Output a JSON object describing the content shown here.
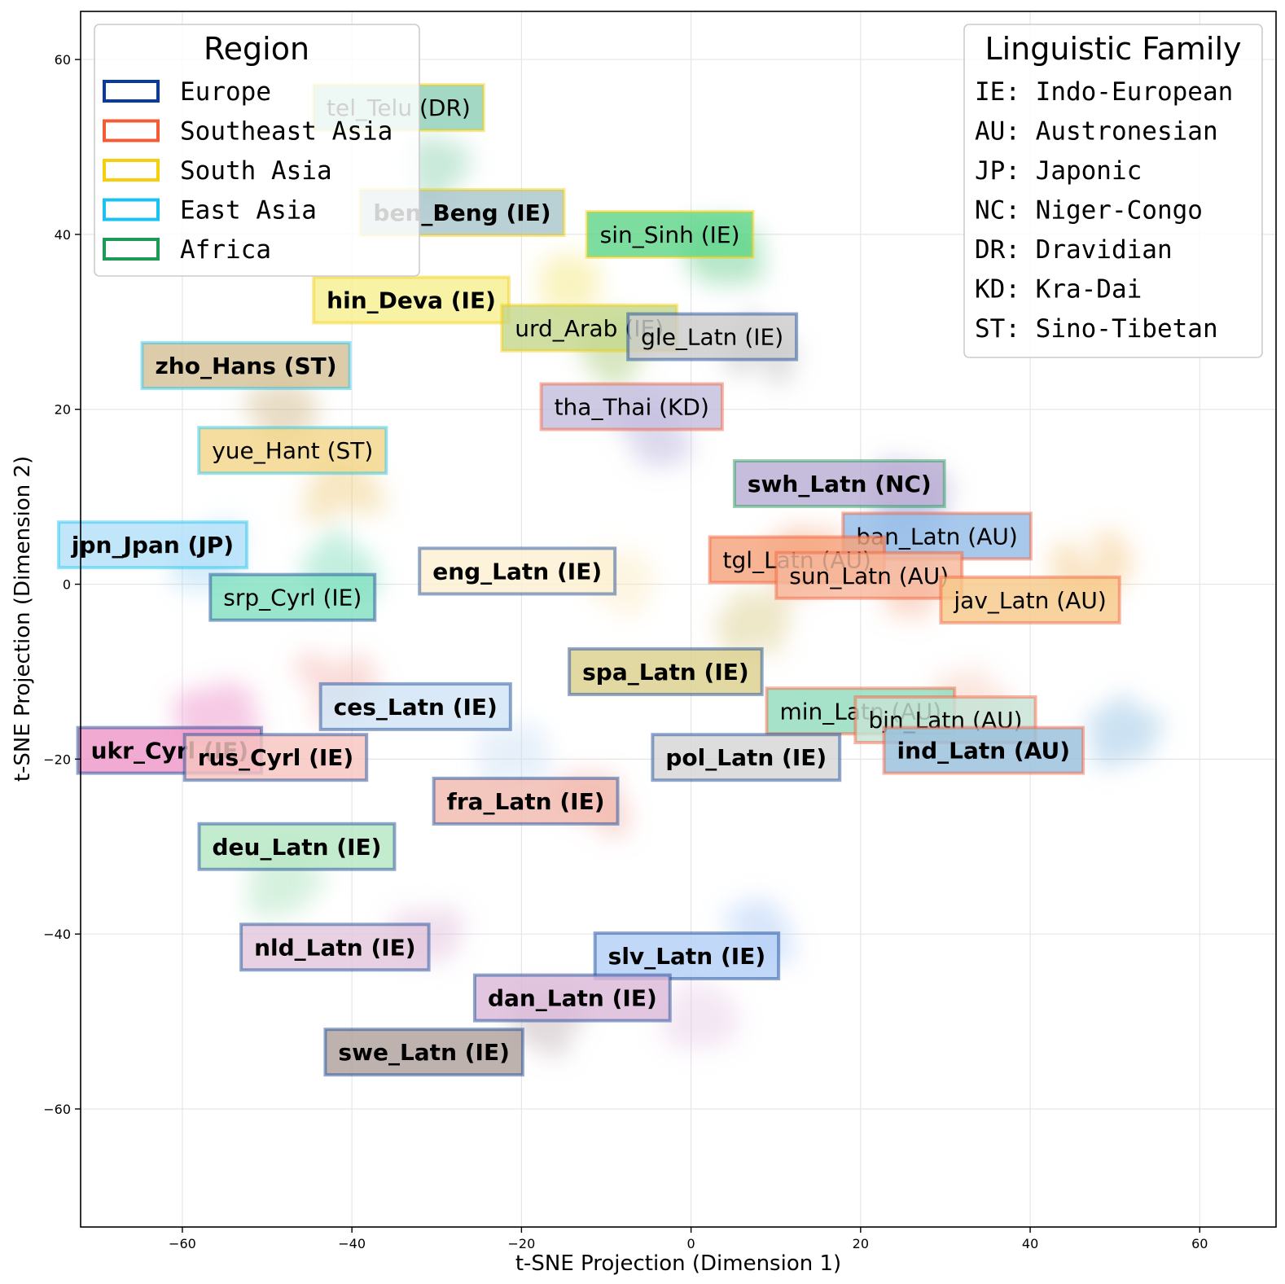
{
  "chart_data": {
    "type": "scatter",
    "xlabel": "t-SNE Projection (Dimension 1)",
    "ylabel": "t-SNE Projection (Dimension 2)",
    "xlim": [
      -72,
      69
    ],
    "ylim": [
      -73.5,
      65.5
    ],
    "xticks": [
      -60,
      -40,
      -20,
      0,
      20,
      40,
      60
    ],
    "yticks": [
      60,
      40,
      20,
      0,
      -20,
      -40,
      -60
    ],
    "xtick_labels": [
      "−60",
      "−40",
      "−20",
      "0",
      "20",
      "40",
      "60"
    ],
    "ytick_labels": [
      "60",
      "40",
      "20",
      "0",
      "−20",
      "−40",
      "−60"
    ],
    "grid": true,
    "region_legend": {
      "title": "Region",
      "position": "top-left",
      "entries": [
        {
          "label": "Europe",
          "color": "#0a3d91"
        },
        {
          "label": "Southeast Asia",
          "color": "#f45b35"
        },
        {
          "label": "South Asia",
          "color": "#f5cf0c"
        },
        {
          "label": "East Asia",
          "color": "#19c3f0"
        },
        {
          "label": "Africa",
          "color": "#1e9a56"
        }
      ]
    },
    "family_legend": {
      "title": "Linguistic Family",
      "position": "top-right",
      "entries": [
        "IE: Indo-European",
        "AU: Austronesian",
        "JP: Japonic",
        "NC: Niger-Congo",
        "DR: Dravidian",
        "KD: Kra-Dai",
        "ST: Sino-Tibetan"
      ]
    },
    "languages": [
      {
        "label": "tel_Telu (DR)",
        "x": -34.5,
        "y": 54.5,
        "region": "South Asia",
        "family": "DR",
        "fill": "#8fd0b8",
        "bold": false,
        "faded_prefix": "tel_Telu "
      },
      {
        "label": "ben_Beng (IE)",
        "x": -27,
        "y": 42.5,
        "region": "South Asia",
        "family": "IE",
        "fill": "#a9c6cc",
        "bold": true,
        "faded_prefix": "ben"
      },
      {
        "label": "sin_Sinh (IE)",
        "x": -2.5,
        "y": 40,
        "region": "South Asia",
        "family": "IE",
        "fill": "#5fd58a",
        "bold": false
      },
      {
        "label": "hin_Deva (IE)",
        "x": -33,
        "y": 32.5,
        "region": "South Asia",
        "family": "IE",
        "fill": "#f7ef90",
        "bold": true
      },
      {
        "label": "urd_Arab (IE)",
        "x": -12,
        "y": 29.3,
        "region": "South Asia",
        "family": "IE",
        "fill": "#c4d88e",
        "bold": false
      },
      {
        "label": "gle_Latn (IE)",
        "x": 2.5,
        "y": 28.3,
        "region": "Europe",
        "family": "IE",
        "fill": "#cccccc",
        "bold": false
      },
      {
        "label": "zho_Hans (ST)",
        "x": -52.5,
        "y": 25,
        "region": "East Asia",
        "family": "ST",
        "fill": "#d4c196",
        "bold": true
      },
      {
        "label": "tha_Thai (KD)",
        "x": -7,
        "y": 20.3,
        "region": "Southeast Asia",
        "family": "KD",
        "fill": "#c3bede",
        "bold": false
      },
      {
        "label": "yue_Hant (ST)",
        "x": -47,
        "y": 15.3,
        "region": "East Asia",
        "family": "ST",
        "fill": "#f2d68a",
        "bold": false
      },
      {
        "label": "swh_Latn (NC)",
        "x": 17.5,
        "y": 11.5,
        "region": "Africa",
        "family": "NC",
        "fill": "#b9add3",
        "bold": true
      },
      {
        "label": "ban_Latn (AU)",
        "x": 29,
        "y": 5.5,
        "region": "Southeast Asia",
        "family": "AU",
        "fill": "#95bde8",
        "bold": false
      },
      {
        "label": "jpn_Jpan (JP)",
        "x": -63.5,
        "y": 4.5,
        "region": "East Asia",
        "family": "JP",
        "fill": "#b3e0f9",
        "bold": true
      },
      {
        "label": "tgl_Latn (AU)",
        "x": 12.5,
        "y": 2.8,
        "region": "Southeast Asia",
        "family": "AU",
        "fill": "#f5a47c",
        "bold": false
      },
      {
        "label": "eng_Latn (IE)",
        "x": -20.5,
        "y": 1.5,
        "region": "Europe",
        "family": "IE",
        "fill": "#fdf0d2",
        "bold": true
      },
      {
        "label": "sun_Latn (AU)",
        "x": 21,
        "y": 1,
        "region": "Southeast Asia",
        "family": "AU",
        "fill": "#f7b79b",
        "bold": false
      },
      {
        "label": "srp_Cyrl (IE)",
        "x": -47,
        "y": -1.5,
        "region": "Europe",
        "family": "IE",
        "fill": "#84e0c2",
        "bold": false
      },
      {
        "label": "jav_Latn (AU)",
        "x": 40,
        "y": -1.8,
        "region": "Southeast Asia",
        "family": "AU",
        "fill": "#f7c98a",
        "bold": false
      },
      {
        "label": "spa_Latn (IE)",
        "x": -3,
        "y": -10,
        "region": "Europe",
        "family": "IE",
        "fill": "#dcd08e",
        "bold": true
      },
      {
        "label": "ces_Latn (IE)",
        "x": -32.5,
        "y": -14,
        "region": "Europe",
        "family": "IE",
        "fill": "#d1e4f5",
        "bold": true
      },
      {
        "label": "min_Latn (AU)",
        "x": 20,
        "y": -14.5,
        "region": "Southeast Asia",
        "family": "AU",
        "fill": "#93dcbe",
        "bold": false
      },
      {
        "label": "bjn_Latn (AU)",
        "x": 30,
        "y": -15.5,
        "region": "Southeast Asia",
        "family": "AU",
        "fill": "#c6e3d6",
        "bold": false
      },
      {
        "label": "ind_Latn (AU)",
        "x": 34.5,
        "y": -19,
        "region": "Southeast Asia",
        "family": "AU",
        "fill": "#98bfdc",
        "bold": true
      },
      {
        "label": "ukr_Cyrl (IE)",
        "x": -61.5,
        "y": -19,
        "region": "Europe",
        "family": "IE",
        "fill": "#ee97c8",
        "bold": true
      },
      {
        "label": "rus_Cyrl (IE)",
        "x": -49,
        "y": -19.8,
        "region": "Europe",
        "family": "IE",
        "fill": "#f7c4c0",
        "bold": true
      },
      {
        "label": "pol_Latn (IE)",
        "x": 6.5,
        "y": -19.8,
        "region": "Europe",
        "family": "IE",
        "fill": "#d6d6d6",
        "bold": true
      },
      {
        "label": "fra_Latn (IE)",
        "x": -19.5,
        "y": -24.8,
        "region": "Europe",
        "family": "IE",
        "fill": "#f2bbb0",
        "bold": true
      },
      {
        "label": "deu_Latn (IE)",
        "x": -46.5,
        "y": -30,
        "region": "Europe",
        "family": "IE",
        "fill": "#b6e6c3",
        "bold": true
      },
      {
        "label": "nld_Latn (IE)",
        "x": -42,
        "y": -41.5,
        "region": "Europe",
        "family": "IE",
        "fill": "#e2c7dd",
        "bold": true
      },
      {
        "label": "slv_Latn (IE)",
        "x": -0.5,
        "y": -42.5,
        "region": "Europe",
        "family": "IE",
        "fill": "#b4d0f7",
        "bold": true
      },
      {
        "label": "dan_Latn (IE)",
        "x": -14,
        "y": -47.3,
        "region": "Europe",
        "family": "IE",
        "fill": "#dcbad8",
        "bold": true
      },
      {
        "label": "swe_Latn (IE)",
        "x": -31.5,
        "y": -53.5,
        "region": "Europe",
        "family": "IE",
        "fill": "#b0a19d",
        "bold": true
      }
    ],
    "clusters": [
      {
        "x": -29,
        "y": 47,
        "color": "#7fcba7"
      },
      {
        "x": 4,
        "y": 38,
        "color": "#54c77c"
      },
      {
        "x": -14,
        "y": 34,
        "color": "#f2e36a"
      },
      {
        "x": -9,
        "y": 27,
        "color": "#9fc46a"
      },
      {
        "x": 8,
        "y": 27,
        "color": "#b5b5b5"
      },
      {
        "x": -48,
        "y": 20,
        "color": "#c9ae76"
      },
      {
        "x": -4,
        "y": 17,
        "color": "#aea6d6"
      },
      {
        "x": -41,
        "y": 11,
        "color": "#ecc66d"
      },
      {
        "x": 26,
        "y": 10,
        "color": "#a79acb"
      },
      {
        "x": 25,
        "y": 5,
        "color": "#7ea9dd"
      },
      {
        "x": -57,
        "y": 3,
        "color": "#9bd2f4"
      },
      {
        "x": 13,
        "y": 3,
        "color": "#f19a6b"
      },
      {
        "x": -9,
        "y": 0,
        "color": "#fbe6b8"
      },
      {
        "x": 26,
        "y": 0,
        "color": "#f2a684"
      },
      {
        "x": -41,
        "y": 2,
        "color": "#6fd8b4"
      },
      {
        "x": 47,
        "y": 2,
        "color": "#f3bf73"
      },
      {
        "x": 7,
        "y": -5,
        "color": "#d3c57a"
      },
      {
        "x": 51,
        "y": -17,
        "color": "#86b9e0"
      },
      {
        "x": -21,
        "y": -20,
        "color": "#c5dcf2"
      },
      {
        "x": 33,
        "y": -13,
        "color": "#f6c3b0"
      },
      {
        "x": -56,
        "y": -15,
        "color": "#ea7fbf"
      },
      {
        "x": -42,
        "y": -12,
        "color": "#f3a9a3"
      },
      {
        "x": -12,
        "y": -25,
        "color": "#eea399"
      },
      {
        "x": -48,
        "y": -34,
        "color": "#a1deb3"
      },
      {
        "x": -32,
        "y": -41,
        "color": "#dbb4d4"
      },
      {
        "x": 8,
        "y": -40,
        "color": "#a3c3f5"
      },
      {
        "x": -17,
        "y": -50,
        "color": "#b9a7ab"
      },
      {
        "x": 1,
        "y": -49,
        "color": "#e2c3e2"
      }
    ]
  }
}
